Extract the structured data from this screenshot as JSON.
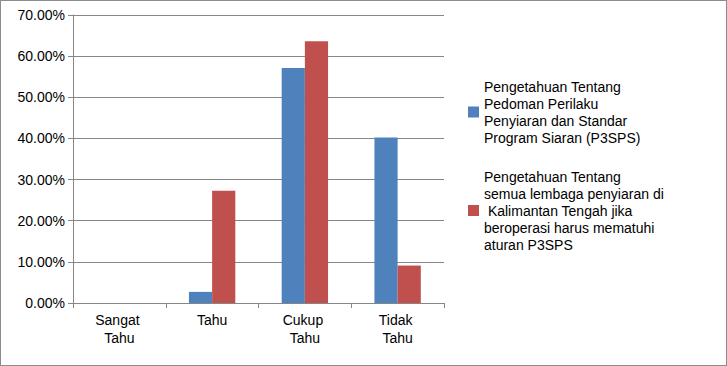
{
  "chart_data": {
    "type": "bar",
    "categories": [
      "Sangat Tahu",
      "Tahu",
      "Cukup Tahu",
      "Tidak Tahu"
    ],
    "series": [
      {
        "name": "Pengetahuan Tentang Pedoman Perilaku Penyiaran dan Standar Program Siaran (P3SPS)",
        "color": "#4f81bd",
        "values": [
          0,
          2.7,
          57.1,
          40.2
        ]
      },
      {
        "name": "Pengetahuan Tentang semua lembaga penyiaran di Kalimantan Tengah jika beroperasi harus mematuhi aturan P3SPS",
        "color": "#c0504d",
        "values": [
          0,
          27.3,
          63.6,
          9.1
        ]
      }
    ],
    "ylim": [
      0,
      70
    ],
    "yticks": [
      {
        "value": 0,
        "label": "0.00%"
      },
      {
        "value": 10,
        "label": "10.00%"
      },
      {
        "value": 20,
        "label": "20.00%"
      },
      {
        "value": 30,
        "label": "30.00%"
      },
      {
        "value": 40,
        "label": "40.00%"
      },
      {
        "value": 50,
        "label": "50.00%"
      },
      {
        "value": 60,
        "label": "60.00%"
      },
      {
        "value": 70,
        "label": "70.00%"
      }
    ],
    "grid": true,
    "legend": "right"
  }
}
